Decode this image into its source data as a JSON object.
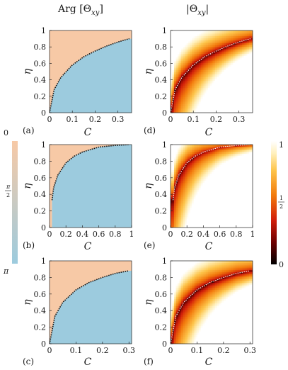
{
  "figure": {
    "col_titles": [
      "Arg [Θxy]",
      "|Θxy|"
    ],
    "left_colorbar": {
      "ticks": [
        "0",
        "π/2",
        "π"
      ],
      "colors": [
        "#f7c9a6",
        "#9ccbde"
      ]
    },
    "right_colorbar": {
      "ticks": [
        "1",
        "1/2",
        "0"
      ]
    }
  },
  "chart_data": [
    {
      "panel": "(a)",
      "type": "heatmap",
      "quantity": "Arg [Θxy]",
      "xlabel": "C",
      "ylabel": "η",
      "xlim": [
        0,
        0.36
      ],
      "ylim": [
        0,
        1
      ],
      "xticks": [
        "0",
        "0.1",
        "0.2",
        "0.3"
      ],
      "yticks": [
        "0",
        "0.2",
        "0.4",
        "0.6",
        "0.8",
        "1"
      ],
      "boundary": {
        "x": [
          0.0,
          0.02,
          0.05,
          0.1,
          0.15,
          0.2,
          0.25,
          0.3,
          0.35
        ],
        "y": [
          0.0,
          0.28,
          0.43,
          0.58,
          0.68,
          0.75,
          0.81,
          0.86,
          0.9
        ]
      }
    },
    {
      "panel": "(b)",
      "type": "heatmap",
      "quantity": "Arg [Θxy]",
      "xlabel": "C",
      "ylabel": "η",
      "xlim": [
        0,
        1
      ],
      "ylim": [
        0,
        1
      ],
      "xticks": [
        "0",
        "0.2",
        "0.4",
        "0.6",
        "0.8",
        "1"
      ],
      "yticks": [
        "0",
        "0.2",
        "0.4",
        "0.6",
        "0.8",
        "1"
      ],
      "boundary": {
        "x": [
          0.03,
          0.05,
          0.1,
          0.2,
          0.3,
          0.4,
          0.5,
          0.6,
          0.8,
          0.97
        ],
        "y": [
          0.33,
          0.48,
          0.63,
          0.78,
          0.86,
          0.91,
          0.94,
          0.97,
          0.99,
          1.0
        ]
      }
    },
    {
      "panel": "(c)",
      "type": "heatmap",
      "quantity": "Arg [Θxy]",
      "xlabel": "C",
      "ylabel": "η",
      "xlim": [
        0,
        0.31
      ],
      "ylim": [
        0,
        1
      ],
      "xticks": [
        "0",
        "0.1",
        "0.2",
        "0.3"
      ],
      "yticks": [
        "0",
        "0.2",
        "0.4",
        "0.6",
        "0.8",
        "1"
      ],
      "boundary": {
        "x": [
          0.0,
          0.02,
          0.05,
          0.1,
          0.15,
          0.2,
          0.25,
          0.3
        ],
        "y": [
          0.0,
          0.33,
          0.5,
          0.65,
          0.74,
          0.8,
          0.85,
          0.88
        ]
      }
    },
    {
      "panel": "(d)",
      "type": "heatmap",
      "quantity": "|Θxy|",
      "xlabel": "C",
      "ylabel": "η",
      "xlim": [
        0,
        0.36
      ],
      "ylim": [
        0,
        1
      ],
      "xticks": [
        "0",
        "0.1",
        "0.2",
        "0.3"
      ],
      "yticks": [
        "0",
        "0.2",
        "0.4",
        "0.6",
        "0.8",
        "1"
      ]
    },
    {
      "panel": "(e)",
      "type": "heatmap",
      "quantity": "|Θxy|",
      "xlabel": "C",
      "ylabel": "η",
      "xlim": [
        0,
        1
      ],
      "ylim": [
        0,
        1
      ],
      "xticks": [
        "0",
        "0.2",
        "0.4",
        "0.6",
        "0.8",
        "1"
      ],
      "yticks": [
        "0",
        "0.2",
        "0.4",
        "0.6",
        "0.8",
        "1"
      ]
    },
    {
      "panel": "(f)",
      "type": "heatmap",
      "quantity": "|Θxy|",
      "xlabel": "C",
      "ylabel": "η",
      "xlim": [
        0,
        0.31
      ],
      "ylim": [
        0,
        1
      ],
      "xticks": [
        "0",
        "0.1",
        "0.2",
        "0.3"
      ],
      "yticks": [
        "0",
        "0.2",
        "0.4",
        "0.6",
        "0.8",
        "1"
      ]
    }
  ]
}
